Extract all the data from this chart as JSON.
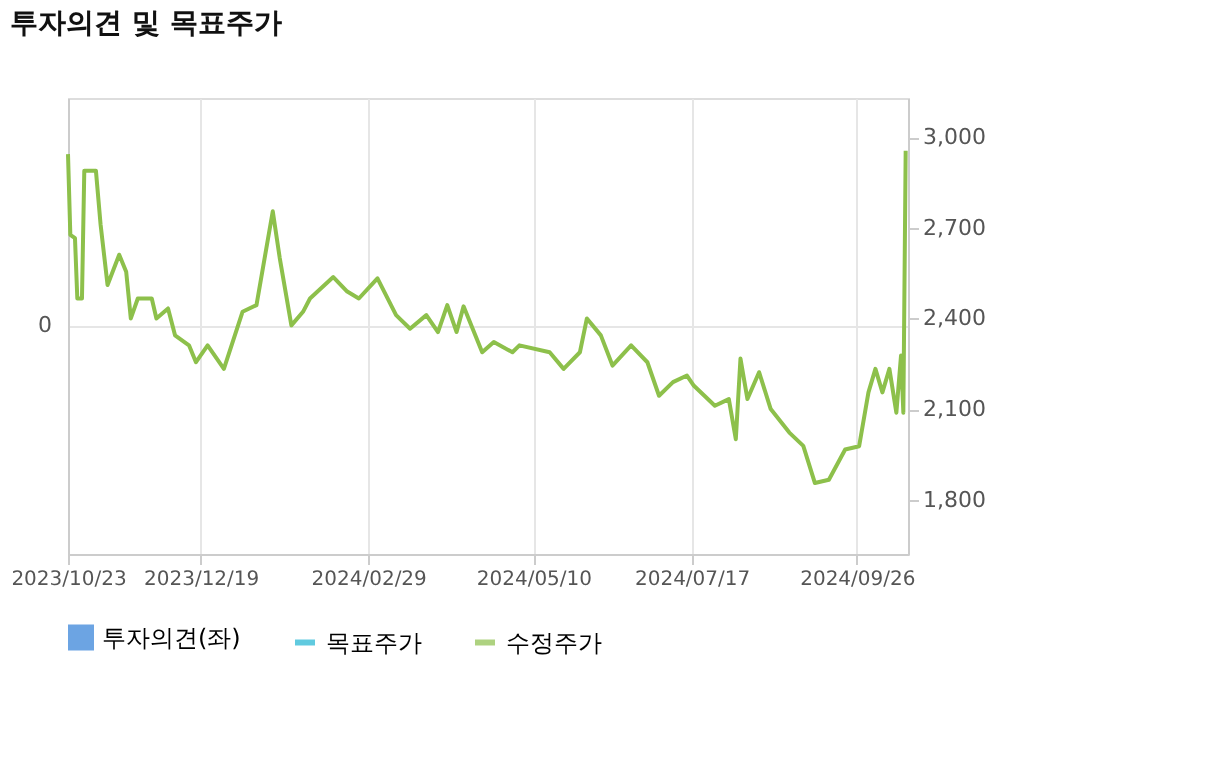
{
  "chart_data": {
    "type": "line",
    "title": "투자의견 및 목표주가",
    "xlim": [
      "2023-10-23",
      "2024-10-18"
    ],
    "xticks": [
      {
        "value": "2023-10-23",
        "label": "2023/10/23"
      },
      {
        "value": "2023-12-19",
        "label": "2023/12/19"
      },
      {
        "value": "2024-02-29",
        "label": "2024/02/29"
      },
      {
        "value": "2024-05-10",
        "label": "2024/05/10"
      },
      {
        "value": "2024-07-17",
        "label": "2024/07/17"
      },
      {
        "value": "2024-09-26",
        "label": "2024/09/26"
      }
    ],
    "annotations": [
      "0"
    ],
    "y2lim": [
      1620,
      3130
    ],
    "y2ticks": [
      {
        "value": 1800,
        "label": "1,800"
      },
      {
        "value": 2100,
        "label": "2,100"
      },
      {
        "value": 2400,
        "label": "2,400"
      },
      {
        "value": 2700,
        "label": "2,700"
      },
      {
        "value": 3000,
        "label": "3,000"
      }
    ],
    "grid": true,
    "legend": "bottom",
    "series": [
      {
        "name": "투자의견(좌)",
        "type": "bar",
        "color": "#2f7ed8"
      },
      {
        "name": "목표주가",
        "color": "#1eb4d2",
        "axis": "y2"
      },
      {
        "name": "수정주가",
        "color": "#8dc04b",
        "axis": "y2",
        "x": [
          "2023-10-23",
          "2023-10-24",
          "2023-10-26",
          "2023-10-27",
          "2023-10-29",
          "2023-10-30",
          "2023-11-04",
          "2023-11-06",
          "2023-11-09",
          "2023-11-14",
          "2023-11-17",
          "2023-11-19",
          "2023-11-22",
          "2023-11-28",
          "2023-11-30",
          "2023-12-05",
          "2023-12-08",
          "2023-12-14",
          "2023-12-17",
          "2023-12-22",
          "2023-12-29",
          "2024-01-06",
          "2024-01-12",
          "2024-01-19",
          "2024-01-22",
          "2024-01-27",
          "2024-02-01",
          "2024-02-04",
          "2024-02-14",
          "2024-02-20",
          "2024-02-25",
          "2024-03-04",
          "2024-03-12",
          "2024-03-18",
          "2024-03-25",
          "2024-03-30",
          "2024-04-03",
          "2024-04-07",
          "2024-04-10",
          "2024-04-18",
          "2024-04-23",
          "2024-05-01",
          "2024-05-04",
          "2024-05-17",
          "2024-05-23",
          "2024-05-30",
          "2024-06-02",
          "2024-06-08",
          "2024-06-13",
          "2024-06-21",
          "2024-06-28",
          "2024-07-03",
          "2024-07-09",
          "2024-07-15",
          "2024-07-18",
          "2024-07-27",
          "2024-08-02",
          "2024-08-05",
          "2024-08-07",
          "2024-08-10",
          "2024-08-15",
          "2024-08-20",
          "2024-08-28",
          "2024-09-03",
          "2024-09-08",
          "2024-09-14",
          "2024-09-21",
          "2024-09-27",
          "2024-10-01",
          "2024-10-04",
          "2024-10-07",
          "2024-10-10",
          "2024-10-13",
          "2024-10-15",
          "2024-10-16",
          "2024-10-17"
        ],
        "values": [
          2944,
          2677,
          2666,
          2466,
          2466,
          2889,
          2889,
          2711,
          2511,
          2611,
          2555,
          2400,
          2466,
          2466,
          2400,
          2433,
          2344,
          2311,
          2255,
          2311,
          2233,
          2422,
          2444,
          2755,
          2600,
          2377,
          2422,
          2466,
          2537,
          2489,
          2466,
          2533,
          2411,
          2366,
          2411,
          2355,
          2444,
          2355,
          2440,
          2288,
          2322,
          2288,
          2311,
          2288,
          2233,
          2288,
          2400,
          2344,
          2244,
          2311,
          2255,
          2144,
          2189,
          2211,
          2177,
          2111,
          2133,
          2000,
          2267,
          2133,
          2222,
          2100,
          2022,
          1978,
          1855,
          1866,
          1966,
          1977,
          2155,
          2233,
          2155,
          2233,
          2088,
          2277,
          2088,
          2955
        ]
      }
    ]
  }
}
